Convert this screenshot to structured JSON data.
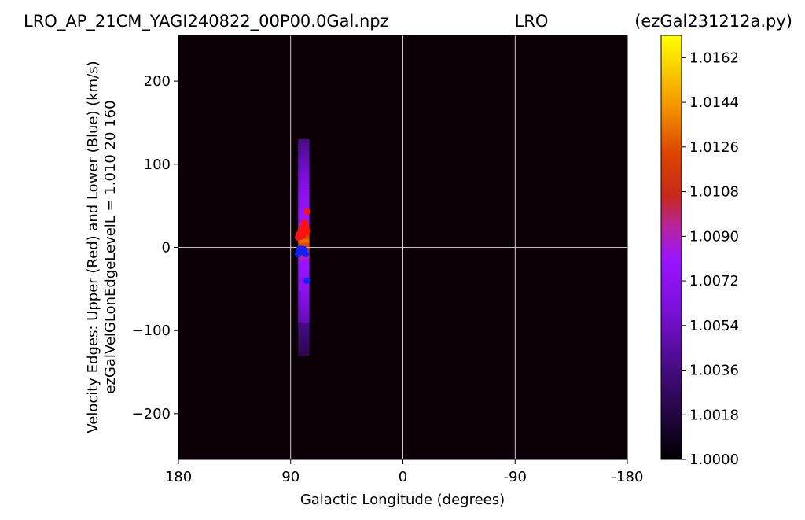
{
  "chart_data": {
    "type": "heatmap",
    "title_left": "LRO_AP_21CM_YAGI240822_00P00.0Gal.npz",
    "title_center": "LRO",
    "title_right": "(ezGal231212a.py)",
    "xlabel": "Galactic Longitude (degrees)",
    "ylabel_line1": "Velocity Edges: Upper (Red) and Lower (Blue) (km/s)",
    "ylabel_line2": "ezGalVelGLonEdgeLevelL = 1.010  20  160",
    "xlim": [
      180,
      -180
    ],
    "ylim": [
      -255,
      255
    ],
    "x_ticks": [
      180,
      90,
      0,
      -90,
      -180
    ],
    "x_tick_labels": [
      "180",
      "90",
      "0",
      "-90",
      "-180"
    ],
    "y_ticks": [
      200,
      100,
      0,
      -100,
      -200
    ],
    "y_tick_labels": [
      "200",
      "100",
      "0",
      "−100",
      "−200"
    ],
    "grid": true,
    "colorbar": {
      "min": 1.0,
      "max": 1.0171,
      "ticks": [
        1.0162,
        1.0144,
        1.0126,
        1.0108,
        1.009,
        1.0072,
        1.0054,
        1.0036,
        1.0018,
        1.0
      ],
      "tick_labels": [
        "1.0162",
        "1.0144",
        "1.0126",
        "1.0108",
        "1.0090",
        "1.0072",
        "1.0054",
        "1.0036",
        "1.0018",
        "1.0000"
      ]
    },
    "band": {
      "x_from": 84,
      "x_to": 75,
      "v_min": -128,
      "v_max": 130
    },
    "series": [
      {
        "points": [
          [
            84,
            12
          ],
          [
            83,
            16
          ],
          [
            82,
            19
          ],
          [
            81,
            21
          ],
          [
            80,
            23
          ],
          [
            79,
            20
          ],
          [
            78,
            24
          ],
          [
            77,
            20
          ],
          [
            77,
            43
          ],
          [
            80,
            15
          ],
          [
            82,
            13
          ],
          [
            79,
            30
          ]
        ]
      },
      {
        "points": [
          [
            84,
            -8
          ],
          [
            83,
            -2
          ],
          [
            82,
            -4
          ],
          [
            81,
            -5
          ],
          [
            80,
            -4
          ],
          [
            79,
            -3
          ],
          [
            78,
            -8
          ],
          [
            77,
            -40
          ],
          [
            82,
            -2
          ],
          [
            80,
            -2
          ]
        ]
      }
    ]
  },
  "colors": {
    "background": "#0c0007",
    "upper_edge": "#ff1010",
    "lower_edge": "#1020ff",
    "grid": "#ffffff"
  }
}
